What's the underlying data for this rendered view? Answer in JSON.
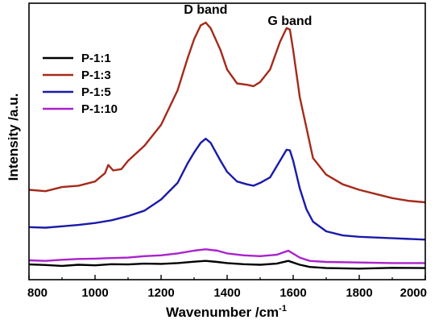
{
  "chart_data": {
    "type": "line",
    "title": "",
    "xlabel": "Wavenumber /cm",
    "xlabel_sup": "-1",
    "ylabel": "Intensity /a.u.",
    "xlim": [
      800,
      2000
    ],
    "ylim": [
      0,
      100
    ],
    "x_ticks": [
      800,
      1000,
      1200,
      1400,
      1600,
      1800,
      2000
    ],
    "y_tick_labels": false,
    "grid": false,
    "legend_position": "top-left",
    "annotations": [
      {
        "text": "D band",
        "x": 1335,
        "y": 95
      },
      {
        "text": "G band",
        "x": 1590,
        "y": 91
      }
    ],
    "series": [
      {
        "name": "P-1:1",
        "color": "#000000",
        "x": [
          800,
          850,
          900,
          950,
          1000,
          1050,
          1100,
          1150,
          1200,
          1250,
          1300,
          1335,
          1370,
          1400,
          1450,
          1500,
          1550,
          1585,
          1620,
          1650,
          1700,
          1800,
          1900,
          2000
        ],
        "y": [
          5.5,
          5.3,
          5.0,
          5.4,
          5.2,
          5.6,
          5.5,
          5.8,
          5.7,
          6.0,
          6.5,
          6.8,
          6.4,
          6.0,
          5.6,
          5.4,
          5.8,
          6.8,
          5.4,
          4.6,
          4.2,
          4.0,
          4.3,
          4.2
        ]
      },
      {
        "name": "P-1:3",
        "color": "#a52a1a",
        "x": [
          800,
          850,
          900,
          950,
          1000,
          1030,
          1040,
          1055,
          1080,
          1100,
          1150,
          1200,
          1250,
          1280,
          1300,
          1320,
          1335,
          1350,
          1380,
          1400,
          1430,
          1460,
          1480,
          1500,
          1530,
          1560,
          1580,
          1590,
          1600,
          1620,
          1640,
          1660,
          1700,
          1750,
          1800,
          1850,
          1900,
          1950,
          2000
        ],
        "y": [
          32.5,
          32.0,
          33.5,
          34.0,
          35.5,
          38.5,
          41.5,
          39.5,
          40.0,
          43.0,
          48.5,
          56.0,
          68.5,
          80.0,
          87.0,
          92.0,
          93.0,
          91.0,
          83.0,
          76.0,
          71.0,
          70.5,
          70.0,
          71.5,
          76.0,
          86.0,
          91.0,
          90.5,
          83.0,
          66.0,
          55.0,
          44.0,
          38.0,
          34.5,
          32.5,
          31.0,
          29.5,
          28.5,
          28.0
        ]
      },
      {
        "name": "P-1:5",
        "color": "#1a1aaa",
        "x": [
          800,
          850,
          900,
          950,
          1000,
          1050,
          1100,
          1150,
          1200,
          1250,
          1280,
          1300,
          1320,
          1335,
          1350,
          1380,
          1400,
          1430,
          1460,
          1480,
          1500,
          1530,
          1560,
          1580,
          1590,
          1600,
          1620,
          1640,
          1660,
          1700,
          1750,
          1800,
          1900,
          2000
        ],
        "y": [
          19.0,
          18.8,
          19.3,
          19.8,
          20.5,
          21.5,
          23.0,
          25.0,
          29.0,
          35.0,
          42.0,
          46.0,
          49.5,
          51.0,
          49.5,
          43.0,
          39.0,
          35.5,
          34.5,
          34.0,
          35.0,
          37.0,
          43.0,
          47.0,
          46.8,
          43.0,
          33.0,
          25.5,
          21.0,
          17.5,
          16.0,
          15.5,
          15.0,
          14.5
        ]
      },
      {
        "name": "P-1:10",
        "color": "#aa22cc",
        "x": [
          800,
          850,
          900,
          950,
          1000,
          1050,
          1100,
          1150,
          1200,
          1250,
          1300,
          1335,
          1370,
          1400,
          1450,
          1500,
          1550,
          1585,
          1620,
          1650,
          1700,
          1800,
          1900,
          2000
        ],
        "y": [
          7.0,
          6.8,
          7.2,
          7.5,
          7.6,
          7.8,
          8.0,
          8.5,
          8.8,
          9.5,
          10.5,
          11.0,
          10.5,
          9.5,
          8.8,
          8.5,
          9.0,
          10.5,
          8.0,
          6.8,
          6.4,
          6.2,
          6.0,
          6.0
        ]
      }
    ]
  }
}
